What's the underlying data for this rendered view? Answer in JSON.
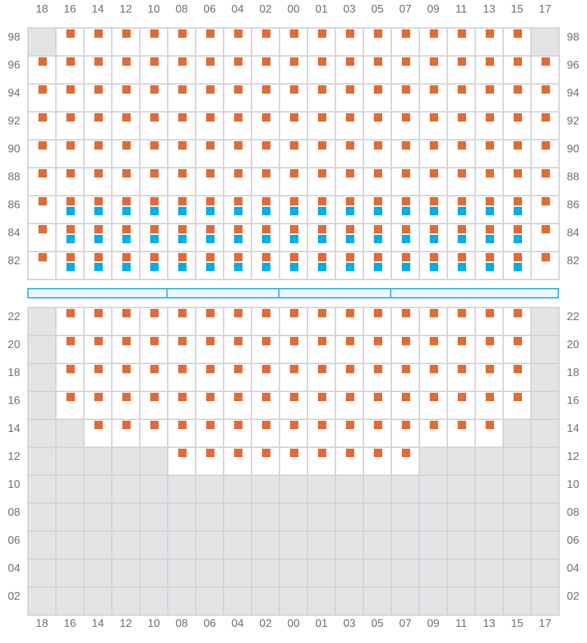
{
  "columns": [
    "18",
    "16",
    "14",
    "12",
    "10",
    "08",
    "06",
    "04",
    "02",
    "00",
    "01",
    "03",
    "05",
    "07",
    "09",
    "11",
    "13",
    "15",
    "17"
  ],
  "legend_states": {
    "x": "unavailable",
    "o": "orange",
    "b": "orange+blue",
    "e": "empty"
  },
  "colors": {
    "orange": "#e06b36",
    "blue": "#00adeb",
    "unavailable": "#e4e4e7",
    "divider": "#3bb5ee"
  },
  "top_section": [
    {
      "row": "98",
      "cells": "xooooooooooooooooox"
    },
    {
      "row": "96",
      "cells": "ooooooooooooooooooo"
    },
    {
      "row": "94",
      "cells": "ooooooooooooooooooo"
    },
    {
      "row": "92",
      "cells": "ooooooooooooooooooo"
    },
    {
      "row": "90",
      "cells": "ooooooooooooooooooo"
    },
    {
      "row": "88",
      "cells": "ooooooooooooooooooo"
    },
    {
      "row": "86",
      "cells": "obbbbbbbbbbbbbbbbbo"
    },
    {
      "row": "84",
      "cells": "obbbbbbbbbbbbbbbbbo"
    },
    {
      "row": "82",
      "cells": "obbbbbbbbbbbbbbbbbo"
    }
  ],
  "bottom_section": [
    {
      "row": "22",
      "cells": "xooooooooooooooooox"
    },
    {
      "row": "20",
      "cells": "xooooooooooooooooox"
    },
    {
      "row": "18",
      "cells": "xooooooooooooooooox"
    },
    {
      "row": "16",
      "cells": "xooooooooooooooooox"
    },
    {
      "row": "14",
      "cells": "xxoooooooooooooooxx"
    },
    {
      "row": "12",
      "cells": "xxxxxoooooooooxxxxx"
    },
    {
      "row": "10",
      "cells": "xxxxxxxxxxxxxxxxxxx"
    },
    {
      "row": "08",
      "cells": "xxxxxxxxxxxxxxxxxxx"
    },
    {
      "row": "06",
      "cells": "xxxxxxxxxxxxxxxxxxx"
    },
    {
      "row": "04",
      "cells": "xxxxxxxxxxxxxxxxxxx"
    },
    {
      "row": "02",
      "cells": "xxxxxxxxxxxxxxxxxxx"
    }
  ]
}
